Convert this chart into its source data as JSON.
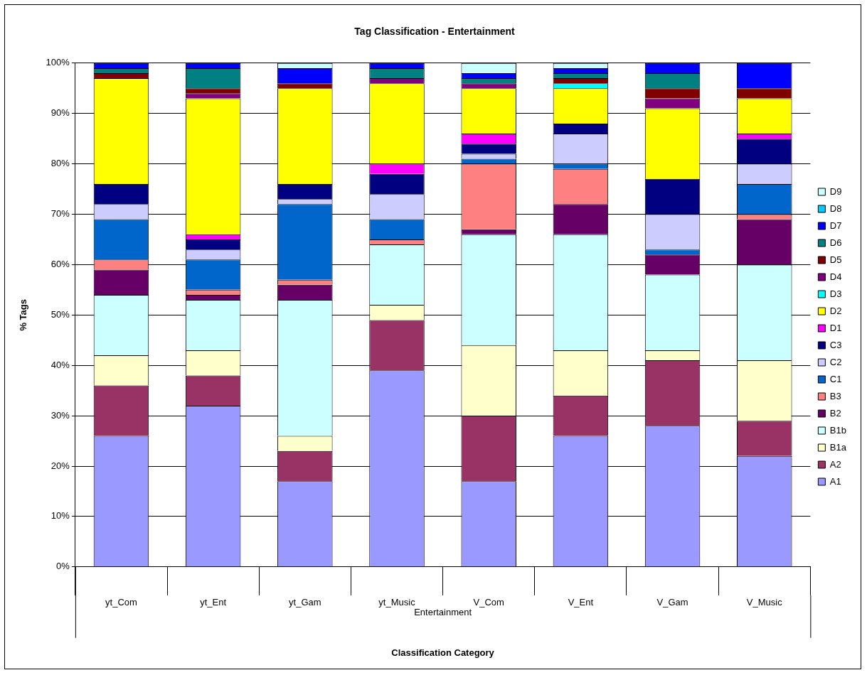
{
  "chart_data": {
    "type": "bar",
    "title": "Tag Classification - Entertainment",
    "xlabel": "Classification Category",
    "ylabel": "% Tags",
    "categories": [
      "yt_Com",
      "yt_Ent",
      "yt_Gam",
      "yt_Music",
      "V_Com",
      "V_Ent",
      "V_Gam",
      "V_Music"
    ],
    "annotations": [
      "Entertainment"
    ],
    "stacked": true,
    "ylim": [
      0,
      100
    ],
    "yticks": [
      {
        "value": 0,
        "label": "0%"
      },
      {
        "value": 10,
        "label": "10%"
      },
      {
        "value": 20,
        "label": "20%"
      },
      {
        "value": 30,
        "label": "30%"
      },
      {
        "value": 40,
        "label": "40%"
      },
      {
        "value": 50,
        "label": "50%"
      },
      {
        "value": 60,
        "label": "60%"
      },
      {
        "value": 70,
        "label": "70%"
      },
      {
        "value": 80,
        "label": "80%"
      },
      {
        "value": 90,
        "label": "90%"
      },
      {
        "value": 100,
        "label": "100%"
      }
    ],
    "grid": "y",
    "legend": "right",
    "series": [
      {
        "name": "A1",
        "color": "#9999ff",
        "values": [
          26,
          32,
          17,
          39,
          17,
          26,
          28,
          22
        ]
      },
      {
        "name": "A2",
        "color": "#993366",
        "values": [
          10,
          6,
          6,
          10,
          13,
          8,
          13,
          7
        ]
      },
      {
        "name": "B1a",
        "color": "#ffffcc",
        "values": [
          6,
          5,
          3,
          3,
          14,
          9,
          2,
          12
        ]
      },
      {
        "name": "B1b",
        "color": "#ccffff",
        "values": [
          12,
          10,
          27,
          12,
          22,
          23,
          15,
          19
        ]
      },
      {
        "name": "B2",
        "color": "#660066",
        "values": [
          5,
          1,
          3,
          0,
          1,
          6,
          4,
          9
        ]
      },
      {
        "name": "B3",
        "color": "#ff8080",
        "values": [
          2,
          1,
          1,
          1,
          13,
          7,
          0,
          1
        ]
      },
      {
        "name": "C1",
        "color": "#0066cc",
        "values": [
          8,
          6,
          15,
          4,
          1,
          1,
          1,
          6
        ]
      },
      {
        "name": "C2",
        "color": "#ccccff",
        "values": [
          3,
          2,
          1,
          5,
          1,
          6,
          7,
          4
        ]
      },
      {
        "name": "C3",
        "color": "#000080",
        "values": [
          4,
          2,
          3,
          4,
          2,
          2,
          7,
          5
        ]
      },
      {
        "name": "D1",
        "color": "#ff00ff",
        "values": [
          0,
          1,
          0,
          2,
          2,
          0,
          0,
          1
        ]
      },
      {
        "name": "D2",
        "color": "#ffff00",
        "values": [
          21,
          27,
          19,
          16,
          9,
          7,
          14,
          7
        ]
      },
      {
        "name": "D3",
        "color": "#00ffff",
        "values": [
          0,
          0,
          0,
          0,
          0,
          1,
          0,
          0
        ]
      },
      {
        "name": "D4",
        "color": "#800080",
        "values": [
          0,
          1,
          0,
          1,
          1,
          0,
          2,
          0
        ]
      },
      {
        "name": "D5",
        "color": "#800000",
        "values": [
          1,
          1,
          1,
          0,
          0,
          1,
          2,
          2
        ]
      },
      {
        "name": "D6",
        "color": "#008080",
        "values": [
          1,
          4,
          0,
          2,
          1,
          1,
          3,
          0
        ]
      },
      {
        "name": "D7",
        "color": "#0000ff",
        "values": [
          1,
          1,
          3,
          1,
          1,
          1,
          2,
          5
        ]
      },
      {
        "name": "D8",
        "color": "#00ccff",
        "values": [
          0,
          0,
          0,
          0,
          0,
          0,
          0,
          0
        ]
      },
      {
        "name": "D9",
        "color": "#ccffff",
        "values": [
          0,
          0,
          1,
          0,
          2,
          1,
          0,
          0
        ]
      }
    ]
  }
}
